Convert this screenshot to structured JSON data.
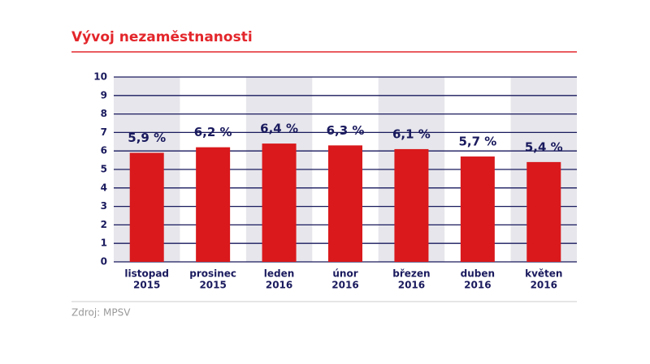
{
  "chart_data": {
    "type": "bar",
    "title": "Vývoj nezaměstnanosti",
    "categories": [
      [
        "listopad",
        "2015"
      ],
      [
        "prosinec",
        "2015"
      ],
      [
        "leden",
        "2016"
      ],
      [
        "únor",
        "2016"
      ],
      [
        "březen",
        "2016"
      ],
      [
        "duben",
        "2016"
      ],
      [
        "květen",
        "2016"
      ]
    ],
    "values": [
      5.9,
      6.2,
      6.4,
      6.3,
      6.1,
      5.7,
      5.4
    ],
    "value_labels": [
      "5,9 %",
      "6,2 %",
      "6,4 %",
      "6,3 %",
      "6,1 %",
      "5,7 %",
      "5,4 %"
    ],
    "color": "#d9191c",
    "ylim": [
      0,
      10
    ],
    "yticks": [
      0,
      1,
      2,
      3,
      4,
      5,
      6,
      7,
      8,
      9,
      10
    ],
    "grid": true,
    "source": "Zdroj: MPSV"
  }
}
